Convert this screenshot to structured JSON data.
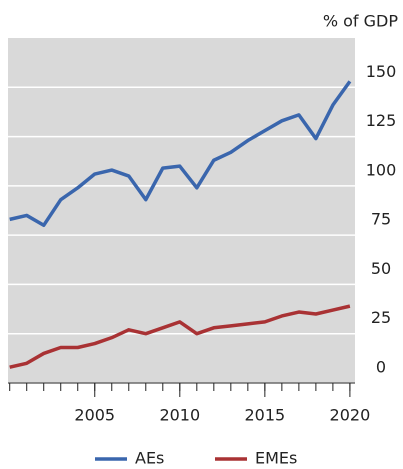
{
  "chart_data": {
    "type": "line",
    "y_unit": "% of GDP",
    "x": [
      2000,
      2001,
      2002,
      2003,
      2004,
      2005,
      2006,
      2007,
      2008,
      2009,
      2010,
      2011,
      2012,
      2013,
      2014,
      2015,
      2016,
      2017,
      2018,
      2019,
      2020
    ],
    "series": [
      {
        "name": "AEs",
        "color": "#3a66ad",
        "values": [
          83,
          85,
          80,
          93,
          99,
          106,
          108,
          105,
          93,
          109,
          110,
          99,
          113,
          117,
          123,
          128,
          133,
          136,
          124,
          141,
          153
        ]
      },
      {
        "name": "EMEs",
        "color": "#a93234",
        "values": [
          8,
          10,
          15,
          18,
          18,
          20,
          23,
          27,
          25,
          28,
          31,
          25,
          28,
          29,
          30,
          31,
          34,
          36,
          35,
          37,
          39
        ]
      }
    ],
    "xlim": [
      1999.9,
      2020.3
    ],
    "xticks": [
      2005,
      2010,
      2015,
      2020
    ],
    "xminor": [
      2000,
      2001,
      2002,
      2003,
      2004,
      2005,
      2006,
      2007,
      2008,
      2009,
      2010,
      2011,
      2012,
      2013,
      2014,
      2015,
      2016,
      2017,
      2018,
      2019,
      2020
    ],
    "ylim": [
      0,
      175
    ],
    "yticks": [
      0,
      25,
      50,
      75,
      100,
      125,
      150
    ],
    "grid": true,
    "legend": "bottom"
  }
}
